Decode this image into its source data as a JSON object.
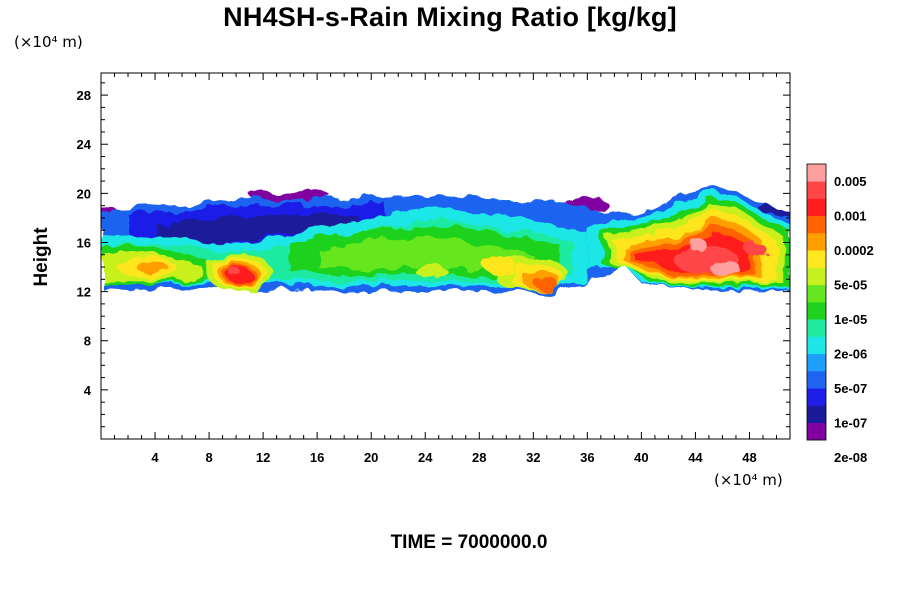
{
  "chart_data": {
    "type": "heatmap",
    "title": "NH4SH-s-Rain Mixing Ratio [kg/kg]",
    "ylabel": "Height",
    "x_unit": "(×10⁴ m)",
    "y_unit": "(×10⁴ m)",
    "footer": "TIME = 7000000.0",
    "xlim": [
      0,
      51
    ],
    "ylim": [
      0,
      29.8
    ],
    "x_ticks": [
      4,
      8,
      12,
      16,
      20,
      24,
      28,
      32,
      36,
      40,
      44,
      48
    ],
    "y_ticks": [
      4,
      8,
      12,
      16,
      20,
      24,
      28
    ],
    "colorbar": {
      "labels": [
        "0.005",
        "0.001",
        "0.0002",
        "5e-05",
        "1e-05",
        "2e-06",
        "5e-07",
        "1e-07",
        "2e-08"
      ],
      "colors": [
        "#8000a0",
        "#1a1a9a",
        "#1e1ee8",
        "#1e64f0",
        "#1ea0ff",
        "#1ee6e6",
        "#1eeaa0",
        "#1ed21e",
        "#66e61e",
        "#c8f01e",
        "#ffe61e",
        "#ffa000",
        "#ff6400",
        "#ff1e1e",
        "#ff4646",
        "#ffa0a0"
      ]
    },
    "cloud_layer": {
      "bottom_height": 12,
      "top_height": 20.5,
      "notable_regions": [
        {
          "x": [
            9,
            11.5
          ],
          "y": [
            12.2,
            15
          ],
          "level": "0.001"
        },
        {
          "x": [
            31,
            34
          ],
          "y": [
            12,
            14
          ],
          "level": "0.0002"
        },
        {
          "x": [
            38,
            50
          ],
          "y": [
            12.5,
            18.5
          ],
          "level": "0.005"
        },
        {
          "x": [
            0,
            8
          ],
          "y": [
            12.5,
            16.5
          ],
          "level": "5e-05"
        }
      ]
    }
  }
}
